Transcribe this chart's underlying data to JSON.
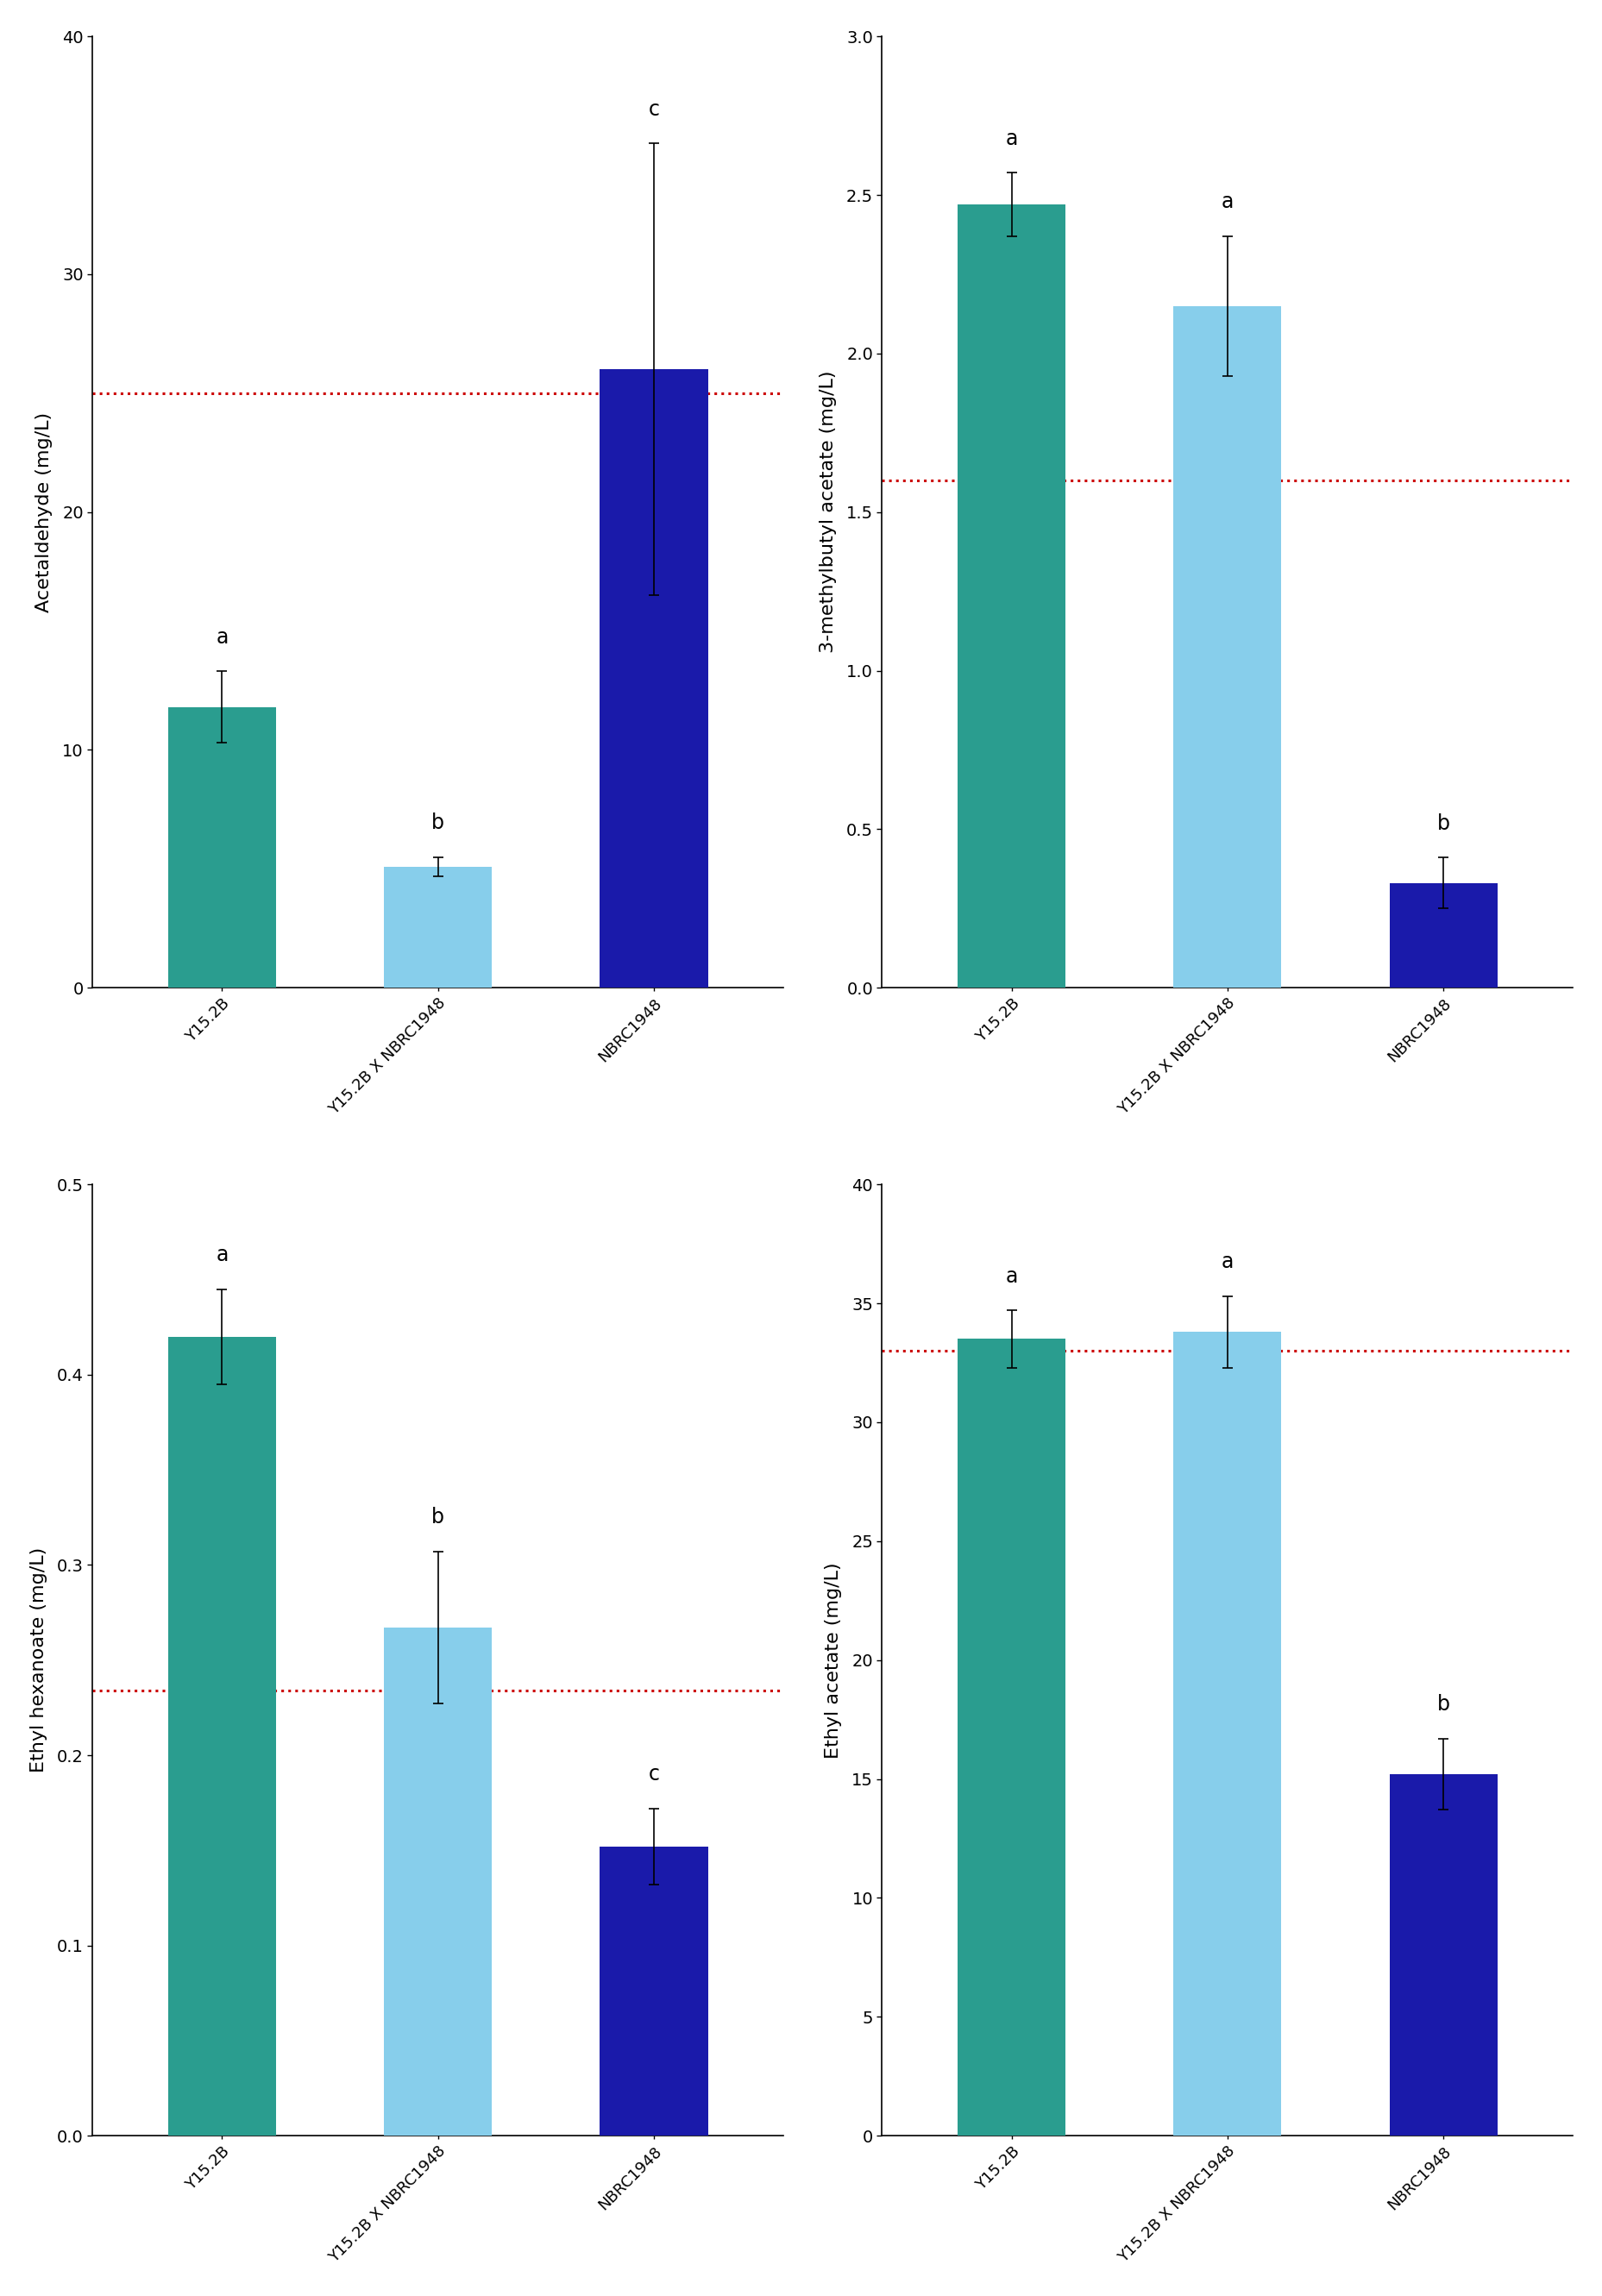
{
  "panels": [
    {
      "ylabel": "Acetaldehyde (mg/L)",
      "ylim": [
        0,
        40
      ],
      "yticks": [
        0,
        10,
        20,
        30,
        40
      ],
      "values": [
        11.8,
        5.1,
        26.0
      ],
      "errors": [
        1.5,
        0.4,
        9.5
      ],
      "letters": [
        "a",
        "b",
        "c"
      ],
      "redline": 25.0,
      "colors": [
        "#2a9d8f",
        "#87ceeb",
        "#1a1aaa"
      ]
    },
    {
      "ylabel": "3-methylbutyl acetate (mg/L)",
      "ylim": [
        0.0,
        3.0
      ],
      "yticks": [
        0.0,
        0.5,
        1.0,
        1.5,
        2.0,
        2.5,
        3.0
      ],
      "values": [
        2.47,
        2.15,
        0.33
      ],
      "errors": [
        0.1,
        0.22,
        0.08
      ],
      "letters": [
        "a",
        "a",
        "b"
      ],
      "redline": 1.6,
      "colors": [
        "#2a9d8f",
        "#87ceeb",
        "#1a1aaa"
      ]
    },
    {
      "ylabel": "Ethyl hexanoate (mg/L)",
      "ylim": [
        0.0,
        0.5
      ],
      "yticks": [
        0.0,
        0.1,
        0.2,
        0.3,
        0.4,
        0.5
      ],
      "values": [
        0.42,
        0.267,
        0.152
      ],
      "errors": [
        0.025,
        0.04,
        0.02
      ],
      "letters": [
        "a",
        "b",
        "c"
      ],
      "redline": 0.234,
      "colors": [
        "#2a9d8f",
        "#87ceeb",
        "#1a1aaa"
      ]
    },
    {
      "ylabel": "Ethyl acetate (mg/L)",
      "ylim": [
        0,
        40
      ],
      "yticks": [
        0,
        5,
        10,
        15,
        20,
        25,
        30,
        35,
        40
      ],
      "values": [
        33.5,
        33.8,
        15.2
      ],
      "errors": [
        1.2,
        1.5,
        1.5
      ],
      "letters": [
        "a",
        "a",
        "b"
      ],
      "redline": 33.0,
      "colors": [
        "#2a9d8f",
        "#87ceeb",
        "#1a1aaa"
      ]
    }
  ],
  "categories": [
    "Y15.2B",
    "Y15.2B X NBRC1948",
    "NBRC1948"
  ],
  "bar_width": 0.5,
  "background_color": "#ffffff",
  "tick_fontsize": 14,
  "label_fontsize": 16,
  "letter_fontsize": 17,
  "xtick_fontsize": 13,
  "redline_color": "#cc0000"
}
